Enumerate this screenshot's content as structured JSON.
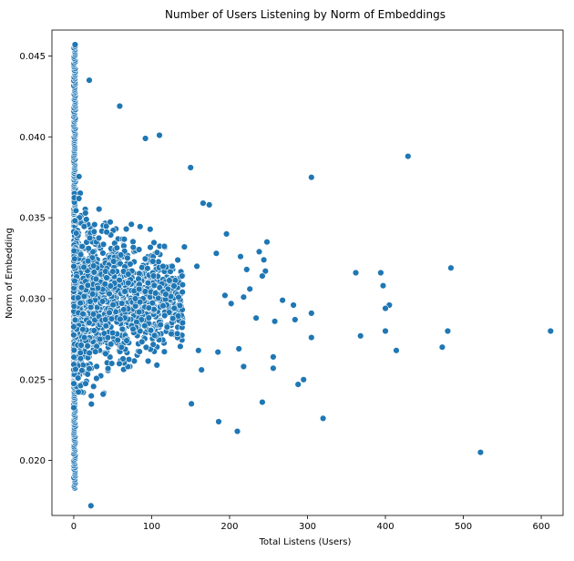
{
  "chart_data": {
    "type": "scatter",
    "title": "Number of Users Listening by Norm of Embeddings",
    "xlabel": "Total Listens (Users)",
    "ylabel": "Norm of Embedding",
    "xlim": [
      -28,
      628
    ],
    "ylim": [
      0.0166,
      0.0466
    ],
    "xticks": [
      0,
      100,
      200,
      300,
      400,
      500,
      600
    ],
    "yticks": [
      0.02,
      0.025,
      0.03,
      0.035,
      0.04,
      0.045
    ],
    "ytick_labels": [
      "0.020",
      "0.025",
      "0.030",
      "0.035",
      "0.040",
      "0.045"
    ],
    "grid": false,
    "marker_color": "#1f77b4",
    "marker_edge": "#ffffff",
    "outliers": [
      {
        "x": 612,
        "y": 0.028
      },
      {
        "x": 522,
        "y": 0.0205
      },
      {
        "x": 484,
        "y": 0.0319
      },
      {
        "x": 480,
        "y": 0.028
      },
      {
        "x": 473,
        "y": 0.027
      },
      {
        "x": 429,
        "y": 0.0388
      },
      {
        "x": 414,
        "y": 0.0268
      },
      {
        "x": 405,
        "y": 0.0296
      },
      {
        "x": 400,
        "y": 0.0294
      },
      {
        "x": 400,
        "y": 0.028
      },
      {
        "x": 397,
        "y": 0.0308
      },
      {
        "x": 394,
        "y": 0.0316
      },
      {
        "x": 368,
        "y": 0.0277
      },
      {
        "x": 362,
        "y": 0.0316
      },
      {
        "x": 320,
        "y": 0.0226
      },
      {
        "x": 305,
        "y": 0.0375
      },
      {
        "x": 305,
        "y": 0.0291
      },
      {
        "x": 305,
        "y": 0.0276
      },
      {
        "x": 295,
        "y": 0.025
      },
      {
        "x": 288,
        "y": 0.0247
      },
      {
        "x": 284,
        "y": 0.0287
      },
      {
        "x": 282,
        "y": 0.0296
      },
      {
        "x": 268,
        "y": 0.0299
      },
      {
        "x": 258,
        "y": 0.0286
      },
      {
        "x": 256,
        "y": 0.0264
      },
      {
        "x": 256,
        "y": 0.0257
      },
      {
        "x": 248,
        "y": 0.0335
      },
      {
        "x": 246,
        "y": 0.0317
      },
      {
        "x": 244,
        "y": 0.0324
      },
      {
        "x": 242,
        "y": 0.0314
      },
      {
        "x": 238,
        "y": 0.0329
      },
      {
        "x": 226,
        "y": 0.0306
      },
      {
        "x": 222,
        "y": 0.0318
      },
      {
        "x": 218,
        "y": 0.0258
      },
      {
        "x": 214,
        "y": 0.0326
      },
      {
        "x": 212,
        "y": 0.0269
      },
      {
        "x": 210,
        "y": 0.0218
      },
      {
        "x": 202,
        "y": 0.0297
      },
      {
        "x": 196,
        "y": 0.034
      },
      {
        "x": 194,
        "y": 0.0302
      },
      {
        "x": 186,
        "y": 0.0224
      },
      {
        "x": 185,
        "y": 0.0267
      },
      {
        "x": 183,
        "y": 0.0328
      },
      {
        "x": 174,
        "y": 0.0358
      },
      {
        "x": 166,
        "y": 0.0359
      },
      {
        "x": 164,
        "y": 0.0256
      },
      {
        "x": 160,
        "y": 0.0268
      },
      {
        "x": 151,
        "y": 0.0235
      },
      {
        "x": 150,
        "y": 0.0381
      },
      {
        "x": 139,
        "y": 0.0314
      },
      {
        "x": 110,
        "y": 0.0401
      },
      {
        "x": 92,
        "y": 0.0399
      },
      {
        "x": 59,
        "y": 0.0419
      },
      {
        "x": 20,
        "y": 0.0435
      },
      {
        "x": 22,
        "y": 0.0172
      },
      {
        "x": 242,
        "y": 0.0236
      },
      {
        "x": 234,
        "y": 0.0288
      },
      {
        "x": 218,
        "y": 0.0301
      },
      {
        "x": 158,
        "y": 0.032
      },
      {
        "x": 142,
        "y": 0.0332
      }
    ],
    "dense_cluster": {
      "x_range": [
        0,
        140
      ],
      "y_center": 0.03,
      "y_spread": 0.0045,
      "count": 1500,
      "column_at_zero": {
        "x": 0,
        "y_range": [
          0.0183,
          0.0457
        ]
      }
    }
  }
}
